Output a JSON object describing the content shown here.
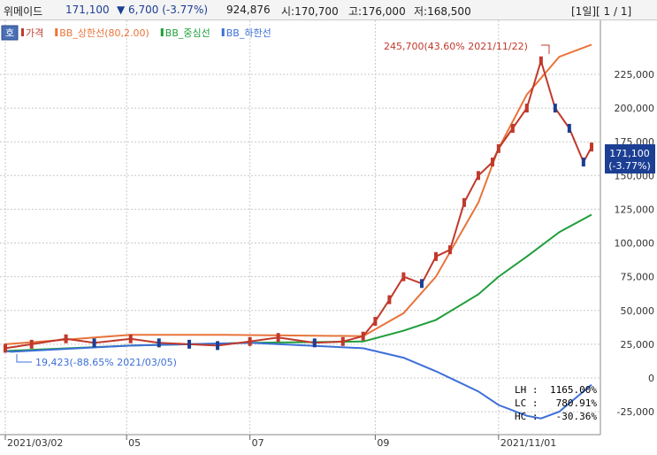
{
  "header": {
    "stock_name": "위메이드",
    "price": "171,100",
    "change": "▼ 6,700 (-3.77%)",
    "volume": "924,876",
    "open": "시:170,700",
    "high": "고:176,000",
    "low": "저:168,500",
    "pagination": "[1일][ 1 / 1]"
  },
  "tag_button": "호",
  "legend": [
    {
      "label": "가격",
      "color": "#c0392b"
    },
    {
      "label": "BB_상한선(80,2.00)",
      "color": "#e8743b"
    },
    {
      "label": "BB_중심선",
      "color": "#1e9e3a"
    },
    {
      "label": "BB_하한선",
      "color": "#3d6fd8"
    }
  ],
  "price_box": {
    "price": "171,100",
    "change": "(-3.77%)",
    "color": "#1c3f94"
  },
  "stats": [
    {
      "label": "LH :",
      "value": "1165.00%",
      "color": "#1e9e3a"
    },
    {
      "label": "LC :",
      "value": "780.91%",
      "color": "#c0392b"
    },
    {
      "label": "HC :",
      "value": "-30.36%",
      "color": "#3d6fd8"
    }
  ],
  "annotations": {
    "high": "245,700(43.60% 2021/11/22)",
    "low": "19,423(-88.65% 2021/03/05)"
  },
  "chart_data": {
    "type": "line",
    "title": "",
    "xlabel": "",
    "ylabel": "",
    "x_ticks": [
      "2021/03/02",
      "05",
      "07",
      "09",
      "2021/11/01"
    ],
    "y_ticks": [
      "225,000",
      "200,000",
      "175,000",
      "150,000",
      "125,000",
      "100,000",
      "75,000",
      "50,000",
      "25,000",
      "0",
      "-25,000"
    ],
    "ylim": [
      -42000,
      265000
    ],
    "grid": true,
    "legend_position": "top-left",
    "candles": {
      "x": [
        "2021/03/02",
        "2021/03/15",
        "2021/04/01",
        "2021/04/15",
        "2021/05/03",
        "2021/05/17",
        "2021/06/01",
        "2021/06/15",
        "2021/07/01",
        "2021/07/15",
        "2021/08/02",
        "2021/08/16",
        "2021/08/26",
        "2021/09/01",
        "2021/09/08",
        "2021/09/15",
        "2021/09/24",
        "2021/10/01",
        "2021/10/08",
        "2021/10/15",
        "2021/10/22",
        "2021/10/29",
        "2021/11/01",
        "2021/11/08",
        "2021/11/15",
        "2021/11/22",
        "2021/11/29",
        "2021/12/06",
        "2021/12/13",
        "2021/12/17"
      ],
      "close": [
        22000,
        25000,
        29000,
        26000,
        29000,
        26000,
        25000,
        24000,
        27000,
        30000,
        26000,
        27000,
        31000,
        42000,
        58000,
        75000,
        70000,
        90000,
        95000,
        130000,
        150000,
        160000,
        170000,
        185000,
        200000,
        235000,
        200000,
        185000,
        160000,
        171100
      ]
    },
    "series": [
      {
        "name": "BB_상한선(80,2.00)",
        "x": [
          "2021/03/02",
          "2021/05/03",
          "2021/06/15",
          "2021/08/26",
          "2021/09/15",
          "2021/10/01",
          "2021/10/22",
          "2021/11/01",
          "2021/11/15",
          "2021/12/01",
          "2021/12/17"
        ],
        "values": [
          25000,
          32000,
          32000,
          31000,
          48000,
          75000,
          130000,
          170000,
          210000,
          238000,
          247000
        ]
      },
      {
        "name": "BB_중심선",
        "x": [
          "2021/03/02",
          "2021/05/03",
          "2021/07/01",
          "2021/08/26",
          "2021/09/15",
          "2021/10/01",
          "2021/10/22",
          "2021/11/01",
          "2021/11/15",
          "2021/12/01",
          "2021/12/17"
        ],
        "values": [
          20000,
          24000,
          26000,
          27000,
          35000,
          43000,
          62000,
          75000,
          90000,
          108000,
          121000
        ]
      },
      {
        "name": "BB_하한선",
        "x": [
          "2021/03/02",
          "2021/03/05",
          "2021/05/03",
          "2021/07/01",
          "2021/08/26",
          "2021/09/15",
          "2021/10/01",
          "2021/10/22",
          "2021/11/01",
          "2021/11/15",
          "2021/11/22",
          "2021/12/01",
          "2021/12/17"
        ],
        "values": [
          20000,
          19423,
          24000,
          26000,
          22000,
          15000,
          5000,
          -10000,
          -20000,
          -28000,
          -30000,
          -25000,
          -5000
        ]
      }
    ]
  }
}
